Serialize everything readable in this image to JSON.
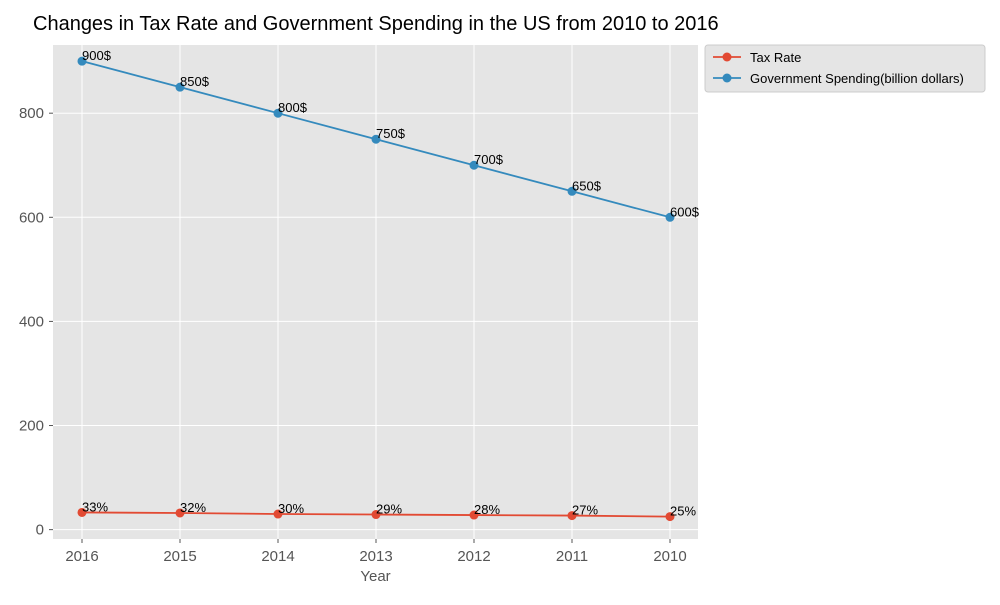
{
  "chart_data": {
    "type": "line",
    "title": "Changes in Tax Rate and Government Spending in the US from 2010 to 2016",
    "xlabel": "Year",
    "ylabel": "",
    "categories": [
      "2016",
      "2015",
      "2014",
      "2013",
      "2012",
      "2011",
      "2010"
    ],
    "ylim": [
      -18,
      931
    ],
    "yticks": [
      0,
      200,
      400,
      600,
      800
    ],
    "grid": true,
    "legend_position": "outside-top-right",
    "series": [
      {
        "name": "Tax Rate",
        "color": "#E24A33",
        "values": [
          33,
          32,
          30,
          29,
          28,
          27,
          25
        ],
        "labels": [
          "33%",
          "32%",
          "30%",
          "29%",
          "28%",
          "27%",
          "25%"
        ]
      },
      {
        "name": "Government Spending(billion dollars)",
        "color": "#348ABD",
        "values": [
          900,
          850,
          800,
          750,
          700,
          650,
          600
        ],
        "labels": [
          "900$",
          "850$",
          "800$",
          "750$",
          "700$",
          "650$",
          "600$"
        ]
      }
    ]
  }
}
